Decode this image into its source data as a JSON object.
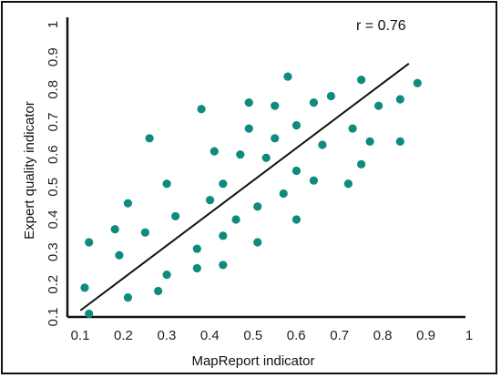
{
  "chart_data": {
    "type": "scatter",
    "title": "",
    "xlabel": "MapReport indicator",
    "ylabel": "Expert quality indicator",
    "xlim": [
      0.1,
      1.0
    ],
    "ylim": [
      0.1,
      1.0
    ],
    "xticks": [
      "0.1",
      "0.2",
      "0.3",
      "0.4",
      "0.5",
      "0.6",
      "0.7",
      "0.8",
      "0.9",
      "1"
    ],
    "yticks": [
      "0.1",
      "0.2",
      "0.3",
      "0.4",
      "0.5",
      "0.6",
      "0.7",
      "0.8",
      "0.9",
      "1"
    ],
    "grid": false,
    "annotation": "r = 0.76",
    "point_color": "#0f8a7e",
    "line_color": "#111111",
    "points": [
      {
        "x": 0.14,
        "y": 0.19
      },
      {
        "x": 0.15,
        "y": 0.11
      },
      {
        "x": 0.15,
        "y": 0.33
      },
      {
        "x": 0.21,
        "y": 0.37
      },
      {
        "x": 0.22,
        "y": 0.29
      },
      {
        "x": 0.24,
        "y": 0.16
      },
      {
        "x": 0.24,
        "y": 0.45
      },
      {
        "x": 0.28,
        "y": 0.36
      },
      {
        "x": 0.29,
        "y": 0.65
      },
      {
        "x": 0.31,
        "y": 0.18
      },
      {
        "x": 0.33,
        "y": 0.23
      },
      {
        "x": 0.33,
        "y": 0.51
      },
      {
        "x": 0.35,
        "y": 0.41
      },
      {
        "x": 0.4,
        "y": 0.25
      },
      {
        "x": 0.4,
        "y": 0.31
      },
      {
        "x": 0.41,
        "y": 0.74
      },
      {
        "x": 0.43,
        "y": 0.46
      },
      {
        "x": 0.44,
        "y": 0.61
      },
      {
        "x": 0.46,
        "y": 0.26
      },
      {
        "x": 0.46,
        "y": 0.35
      },
      {
        "x": 0.46,
        "y": 0.51
      },
      {
        "x": 0.49,
        "y": 0.4
      },
      {
        "x": 0.5,
        "y": 0.6
      },
      {
        "x": 0.52,
        "y": 0.68
      },
      {
        "x": 0.52,
        "y": 0.76
      },
      {
        "x": 0.54,
        "y": 0.33
      },
      {
        "x": 0.54,
        "y": 0.44
      },
      {
        "x": 0.56,
        "y": 0.59
      },
      {
        "x": 0.58,
        "y": 0.65
      },
      {
        "x": 0.58,
        "y": 0.75
      },
      {
        "x": 0.6,
        "y": 0.48
      },
      {
        "x": 0.61,
        "y": 0.84
      },
      {
        "x": 0.63,
        "y": 0.4
      },
      {
        "x": 0.63,
        "y": 0.55
      },
      {
        "x": 0.63,
        "y": 0.69
      },
      {
        "x": 0.67,
        "y": 0.52
      },
      {
        "x": 0.67,
        "y": 0.76
      },
      {
        "x": 0.69,
        "y": 0.63
      },
      {
        "x": 0.71,
        "y": 0.78
      },
      {
        "x": 0.75,
        "y": 0.51
      },
      {
        "x": 0.76,
        "y": 0.68
      },
      {
        "x": 0.78,
        "y": 0.57
      },
      {
        "x": 0.78,
        "y": 0.83
      },
      {
        "x": 0.8,
        "y": 0.64
      },
      {
        "x": 0.82,
        "y": 0.75
      },
      {
        "x": 0.87,
        "y": 0.64
      },
      {
        "x": 0.87,
        "y": 0.77
      },
      {
        "x": 0.91,
        "y": 0.82
      }
    ],
    "fit_line": {
      "x": [
        0.13,
        0.89
      ],
      "y": [
        0.12,
        0.88
      ]
    }
  }
}
